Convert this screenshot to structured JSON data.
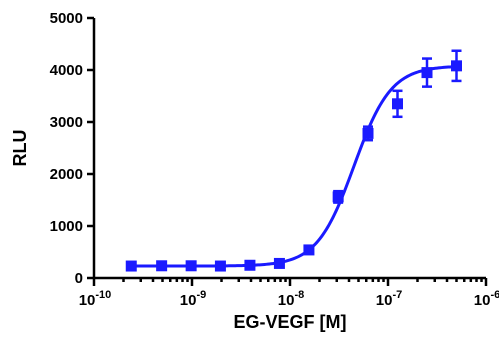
{
  "chart_data": {
    "type": "scatter",
    "xlabel": "EG-VEGF [M]",
    "ylabel": "RLU",
    "x_scale": "log",
    "xlim": [
      1e-10,
      1e-06
    ],
    "ylim": [
      0,
      5000
    ],
    "x_ticks": [
      {
        "value": 1e-10,
        "base": "10",
        "exp": "-10"
      },
      {
        "value": 1e-09,
        "base": "10",
        "exp": "-9"
      },
      {
        "value": 1e-08,
        "base": "10",
        "exp": "-8"
      },
      {
        "value": 1e-07,
        "base": "10",
        "exp": "-7"
      },
      {
        "value": 1e-06,
        "base": "10",
        "exp": "-6"
      }
    ],
    "y_ticks": [
      {
        "value": 0,
        "label": "0"
      },
      {
        "value": 1000,
        "label": "1000"
      },
      {
        "value": 2000,
        "label": "2000"
      },
      {
        "value": 3000,
        "label": "3000"
      },
      {
        "value": 4000,
        "label": "4000"
      },
      {
        "value": 5000,
        "label": "5000"
      }
    ],
    "grid": false,
    "color": "#1a1aff",
    "points": [
      {
        "x": 2.4e-10,
        "y": 230,
        "err": 40
      },
      {
        "x": 4.9e-10,
        "y": 235,
        "err": 40
      },
      {
        "x": 9.8e-10,
        "y": 235,
        "err": 40
      },
      {
        "x": 1.95e-09,
        "y": 230,
        "err": 40
      },
      {
        "x": 3.9e-09,
        "y": 245,
        "err": 40
      },
      {
        "x": 7.8e-09,
        "y": 280,
        "err": 40
      },
      {
        "x": 1.56e-08,
        "y": 540,
        "err": 50
      },
      {
        "x": 3.1e-08,
        "y": 1560,
        "err": 110
      },
      {
        "x": 6.25e-08,
        "y": 2780,
        "err": 130
      },
      {
        "x": 1.25e-07,
        "y": 3350,
        "err": 250
      },
      {
        "x": 2.5e-07,
        "y": 3950,
        "err": 270
      },
      {
        "x": 5e-07,
        "y": 4080,
        "err": 290
      }
    ],
    "fit": {
      "type": "sigmoidal-dose-response",
      "bottom": 230,
      "top": 4080,
      "ec50": 4.5e-08,
      "hill": 2.3
    }
  }
}
